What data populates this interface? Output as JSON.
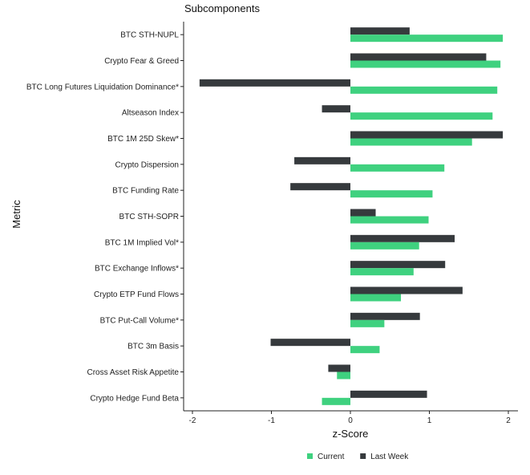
{
  "chart_data": {
    "type": "bar",
    "orientation": "horizontal",
    "title": "Subcomponents",
    "xlabel": "z-Score",
    "ylabel": "Metric",
    "xlim": [
      -2.0,
      2.12
    ],
    "xticks": [
      -2,
      -1,
      0,
      1,
      2
    ],
    "grid": false,
    "legend_position": "bottom",
    "categories": [
      "BTC STH-NUPL",
      "Crypto Fear & Greed",
      "BTC Long Futures Liquidation Dominance*",
      "Altseason Index",
      "BTC 1M 25D Skew*",
      "Crypto Dispersion",
      "BTC Funding Rate",
      "BTC STH-SOPR",
      "BTC 1M Implied Vol*",
      "BTC Exchange Inflows*",
      "Crypto ETP Fund Flows",
      "BTC Put-Call Volume*",
      "BTC 3m Basis",
      "Cross Asset Risk Appetite",
      "Crypto Hedge Fund Beta"
    ],
    "series": [
      {
        "name": "Current",
        "color": "#3fd17f",
        "values": [
          1.93,
          1.9,
          1.86,
          1.8,
          1.54,
          1.19,
          1.04,
          0.99,
          0.87,
          0.8,
          0.64,
          0.43,
          0.37,
          -0.17,
          -0.36
        ]
      },
      {
        "name": "Last Week",
        "color": "#363a3d",
        "values": [
          0.75,
          1.72,
          -1.91,
          -0.36,
          1.93,
          -0.71,
          -0.76,
          0.32,
          1.32,
          1.2,
          1.42,
          0.88,
          -1.01,
          -0.28,
          0.97
        ]
      }
    ]
  }
}
